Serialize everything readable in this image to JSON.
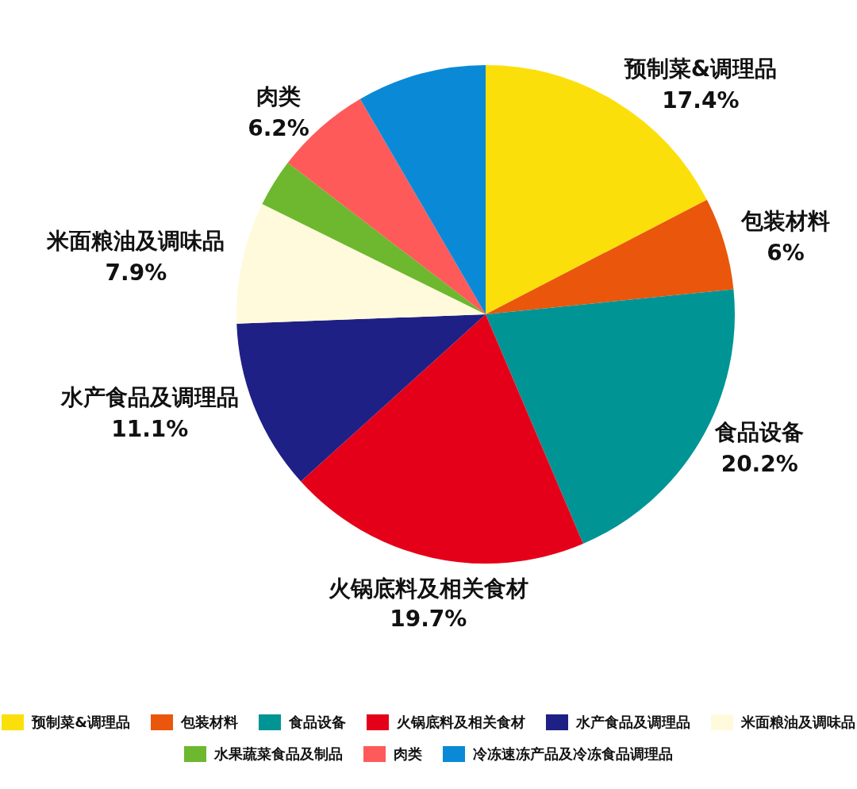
{
  "chart_data": {
    "type": "pie",
    "categories": [
      "预制菜&调理品",
      "包装材料",
      "食品设备",
      "火锅底料及相关食材",
      "水产食品及调理品",
      "米面粮油及调味品",
      "水果蔬菜食品及制品",
      "肉类",
      "冷冻速冻产品及冷冻食品调理品"
    ],
    "values": [
      17.4,
      6,
      20.2,
      19.7,
      11.1,
      7.9,
      3.1,
      6.2,
      8.4
    ],
    "value_labels": [
      "17.4%",
      "6%",
      "20.2%",
      "19.7%",
      "11.1%",
      "7.9%",
      null,
      "6.2%",
      null
    ],
    "colors": [
      "#fbdf0b",
      "#ea560c",
      "#009494",
      "#e50019",
      "#1f2086",
      "#fffadb",
      "#6db82e",
      "#fe5a5a",
      "#0a8ad6"
    ],
    "legend": "bottom"
  }
}
